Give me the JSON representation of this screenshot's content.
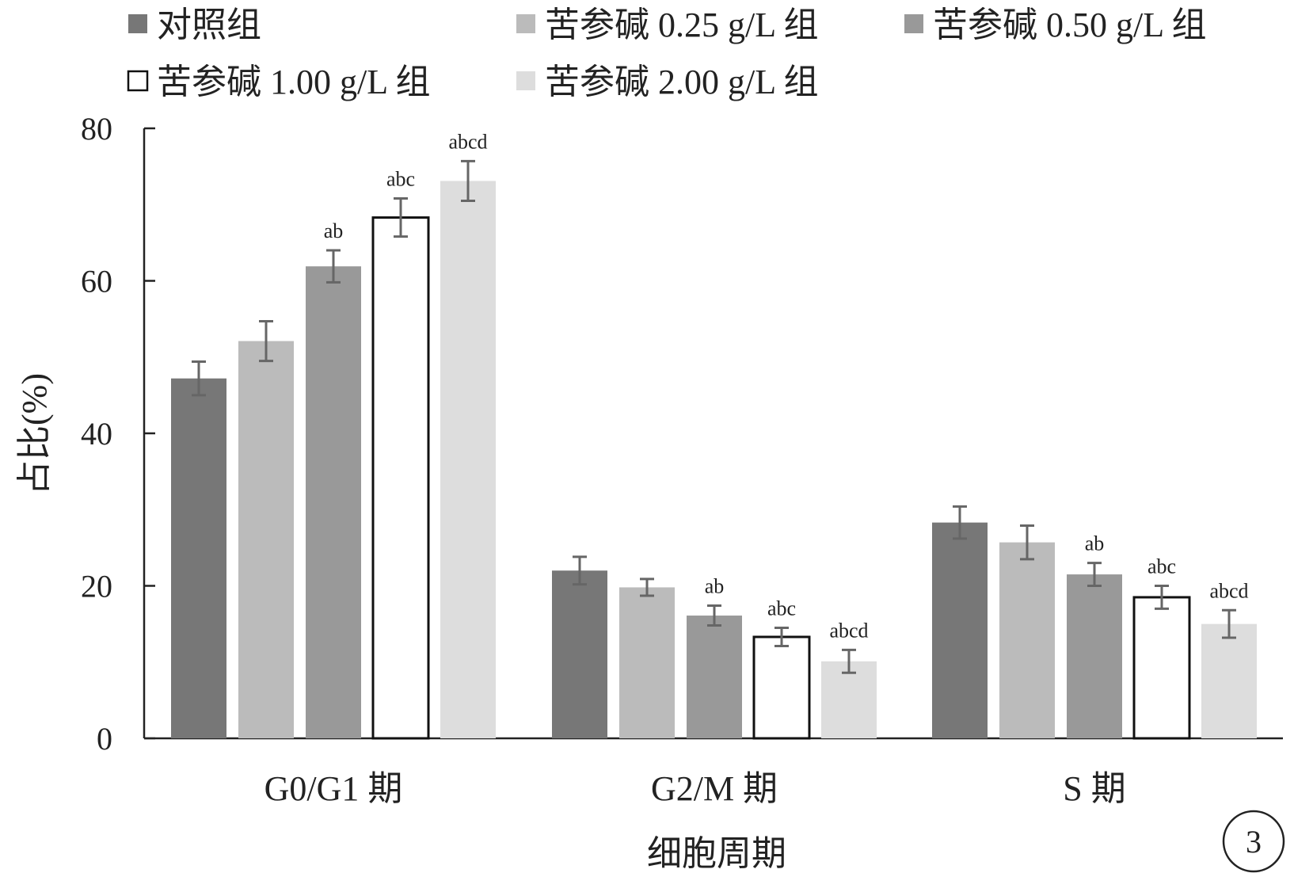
{
  "chart_data": {
    "type": "bar",
    "xlabel": "细胞周期",
    "ylabel": "占比(%)",
    "ylim": [
      0,
      80
    ],
    "yticks": [
      "0",
      "20",
      "40",
      "60",
      "80"
    ],
    "categories": [
      "G0/G1 期",
      "G2/M 期",
      "S 期"
    ],
    "legend_position": "top",
    "panel_label": "3",
    "series": [
      {
        "name": "对照组",
        "color": "#777777",
        "outline": false,
        "values": [
          47.2,
          22.0,
          28.3
        ],
        "errors": [
          2.2,
          1.8,
          2.1
        ],
        "labels": [
          "",
          "",
          ""
        ]
      },
      {
        "name": "苦参碱 0.25 g/L 组",
        "color": "#bbbbbb",
        "outline": false,
        "values": [
          52.1,
          19.8,
          25.7
        ],
        "errors": [
          2.6,
          1.1,
          2.2
        ],
        "labels": [
          "",
          "",
          ""
        ]
      },
      {
        "name": "苦参碱 0.50 g/L 组",
        "color": "#999999",
        "outline": false,
        "values": [
          61.9,
          16.1,
          21.5
        ],
        "errors": [
          2.1,
          1.3,
          1.5
        ],
        "labels": [
          "ab",
          "ab",
          "ab"
        ]
      },
      {
        "name": "苦参碱 1.00 g/L 组",
        "color": "#ffffff",
        "outline": true,
        "values": [
          68.3,
          13.3,
          18.5
        ],
        "errors": [
          2.5,
          1.2,
          1.5
        ],
        "labels": [
          "abc",
          "abc",
          "abc"
        ]
      },
      {
        "name": "苦参碱 2.00 g/L 组",
        "color": "#dddddd",
        "outline": false,
        "values": [
          73.1,
          10.1,
          15.0
        ],
        "errors": [
          2.6,
          1.5,
          1.8
        ],
        "labels": [
          "abcd",
          "abcd",
          "abcd"
        ]
      }
    ]
  }
}
